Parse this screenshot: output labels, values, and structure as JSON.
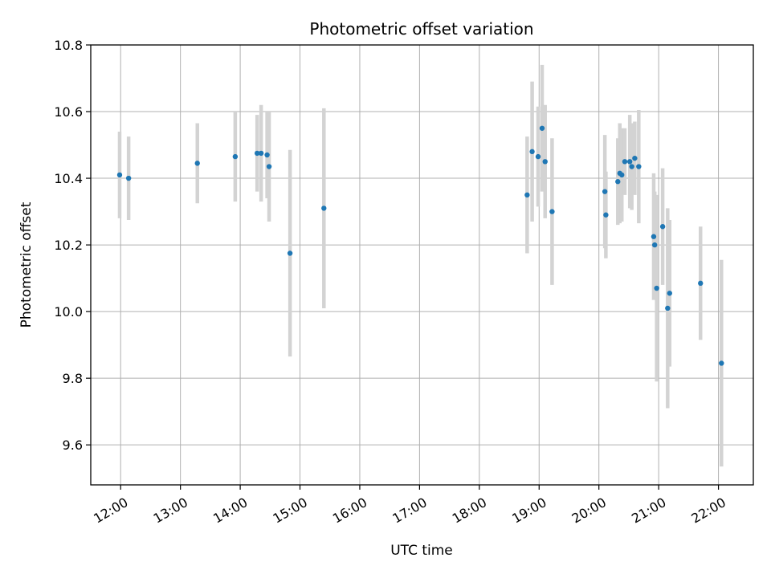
{
  "chart_data": {
    "type": "scatter",
    "title": "Photometric offset variation",
    "xlabel": "UTC time",
    "ylabel": "Photometric offset",
    "x_ticks": [
      "12:00",
      "13:00",
      "14:00",
      "15:00",
      "16:00",
      "17:00",
      "18:00",
      "19:00",
      "20:00",
      "21:00",
      "22:00"
    ],
    "y_ticks": [
      "9.6",
      "9.8",
      "10.0",
      "10.2",
      "10.4",
      "10.6",
      "10.8"
    ],
    "xlim": [
      "11:30",
      "22:35"
    ],
    "ylim": [
      9.48,
      10.8
    ],
    "grid": true,
    "colors": {
      "point": "#1f77b4",
      "errorbar": "#d3d3d3",
      "grid": "#b0b0b0"
    },
    "points": [
      {
        "t": "11:59",
        "y": 10.41,
        "err": 0.13
      },
      {
        "t": "12:08",
        "y": 10.4,
        "err": 0.125
      },
      {
        "t": "13:17",
        "y": 10.445,
        "err": 0.12
      },
      {
        "t": "13:55",
        "y": 10.465,
        "err": 0.135
      },
      {
        "t": "14:17",
        "y": 10.475,
        "err": 0.115
      },
      {
        "t": "14:21",
        "y": 10.475,
        "err": 0.145
      },
      {
        "t": "14:27",
        "y": 10.47,
        "err": 0.13
      },
      {
        "t": "14:29",
        "y": 10.435,
        "err": 0.165
      },
      {
        "t": "14:50",
        "y": 10.175,
        "err": 0.31
      },
      {
        "t": "15:24",
        "y": 10.31,
        "err": 0.3
      },
      {
        "t": "18:48",
        "y": 10.35,
        "err": 0.175
      },
      {
        "t": "18:53",
        "y": 10.48,
        "err": 0.21
      },
      {
        "t": "18:59",
        "y": 10.465,
        "err": 0.15
      },
      {
        "t": "19:03",
        "y": 10.55,
        "err": 0.19
      },
      {
        "t": "19:06",
        "y": 10.45,
        "err": 0.17
      },
      {
        "t": "19:13",
        "y": 10.3,
        "err": 0.22
      },
      {
        "t": "20:06",
        "y": 10.36,
        "err": 0.17
      },
      {
        "t": "20:07",
        "y": 10.29,
        "err": 0.13
      },
      {
        "t": "20:19",
        "y": 10.39,
        "err": 0.13
      },
      {
        "t": "20:21",
        "y": 10.415,
        "err": 0.15
      },
      {
        "t": "20:23",
        "y": 10.41,
        "err": 0.14
      },
      {
        "t": "20:26",
        "y": 10.45,
        "err": 0.1
      },
      {
        "t": "20:31",
        "y": 10.45,
        "err": 0.14
      },
      {
        "t": "20:33",
        "y": 10.435,
        "err": 0.13
      },
      {
        "t": "20:36",
        "y": 10.46,
        "err": 0.11
      },
      {
        "t": "20:40",
        "y": 10.435,
        "err": 0.17
      },
      {
        "t": "20:55",
        "y": 10.225,
        "err": 0.19
      },
      {
        "t": "20:56",
        "y": 10.2,
        "err": 0.16
      },
      {
        "t": "20:58",
        "y": 10.07,
        "err": 0.28
      },
      {
        "t": "21:04",
        "y": 10.255,
        "err": 0.175
      },
      {
        "t": "21:09",
        "y": 10.01,
        "err": 0.3
      },
      {
        "t": "21:11",
        "y": 10.055,
        "err": 0.22
      },
      {
        "t": "21:42",
        "y": 10.085,
        "err": 0.17
      },
      {
        "t": "22:03",
        "y": 9.845,
        "err": 0.31
      }
    ]
  }
}
